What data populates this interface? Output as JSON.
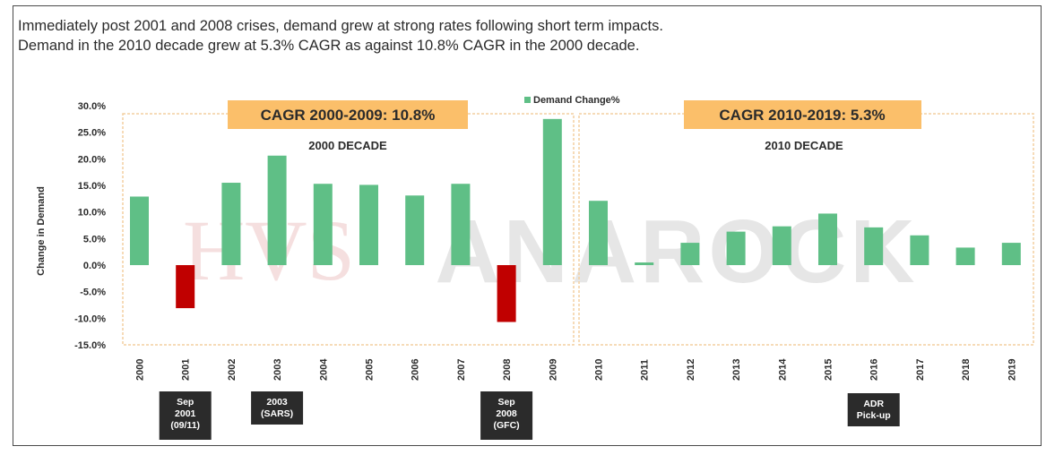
{
  "headline": {
    "line1": "Immediately post 2001 and 2008 crises, demand grew at strong rates following short term impacts.",
    "line2": "Demand in the 2010 decade grew at 5.3% CAGR as against 10.8% CAGR in the 2000 decade."
  },
  "watermark": {
    "left": "HVS",
    "right": "ANAROCK"
  },
  "colors": {
    "positive": "#5fbf86",
    "negative": "#c00000",
    "cagr_box": "#fbbf6a",
    "decade_border": "#f3cfa0",
    "annotation_box": "#2b2b2b"
  },
  "panels": [
    {
      "cagr_label": "CAGR 2000-2009: 10.8%",
      "decade_label": "2000 DECADE"
    },
    {
      "cagr_label": "CAGR 2010-2019: 5.3%",
      "decade_label": "2010 DECADE"
    }
  ],
  "annotations": [
    {
      "year": "2001",
      "lines": [
        "Sep",
        "2001",
        "(09/11)"
      ]
    },
    {
      "year": "2003",
      "lines": [
        "2003",
        "(SARS)"
      ]
    },
    {
      "year": "2008",
      "lines": [
        "Sep",
        "2008",
        "(GFC)"
      ]
    },
    {
      "year": "2016",
      "lines": [
        "ADR",
        "Pick-up"
      ]
    }
  ],
  "chart_data": {
    "type": "bar",
    "title": "",
    "ylabel": "Change in Demand",
    "xlabel": "",
    "ylim": [
      -0.15,
      0.3
    ],
    "yticks": [
      "30.0%",
      "25.0%",
      "20.0%",
      "15.0%",
      "10.0%",
      "5.0%",
      "0.0%",
      "-5.0%",
      "-10.0%",
      "-15.0%"
    ],
    "legend": {
      "label": "Demand Change%",
      "position": "top-center"
    },
    "categories": [
      "2000",
      "2001",
      "2002",
      "2003",
      "2004",
      "2005",
      "2006",
      "2007",
      "2008",
      "2009",
      "2010",
      "2011",
      "2012",
      "2013",
      "2014",
      "2015",
      "2016",
      "2017",
      "2018",
      "2019"
    ],
    "series": [
      {
        "name": "Demand Change%",
        "values": [
          0.129,
          -0.081,
          0.155,
          0.206,
          0.153,
          0.151,
          0.131,
          0.153,
          -0.107,
          0.275,
          0.121,
          0.005,
          0.042,
          0.063,
          0.073,
          0.097,
          0.071,
          0.056,
          0.033,
          0.042
        ]
      }
    ],
    "grid": false
  }
}
